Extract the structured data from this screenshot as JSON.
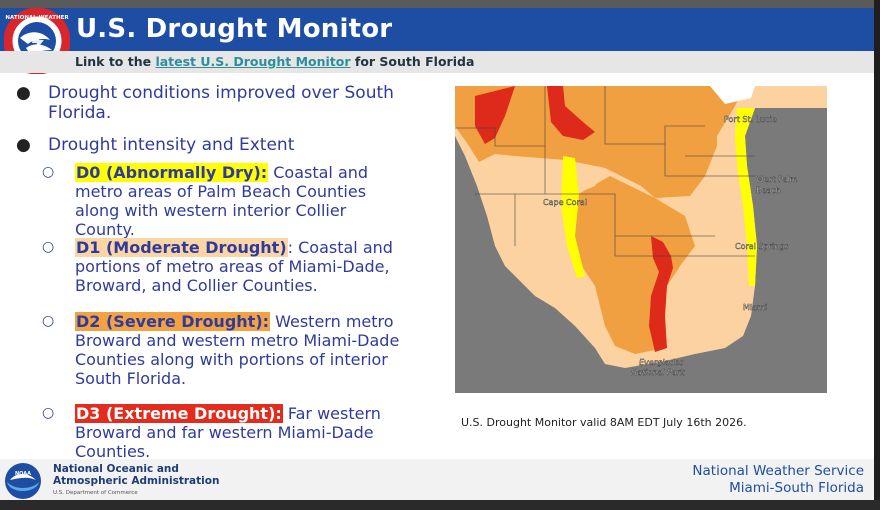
{
  "header": {
    "title": "U.S. Drought Monitor",
    "logo_text": "NATIONAL WEATHER SERVICE"
  },
  "subheader": {
    "prefix": "Link to the ",
    "link_text": "latest U.S. Drought Monitor",
    "suffix": " for South Florida"
  },
  "bullets": {
    "improved": "Drought conditions improved  over South Florida.",
    "intensity": "Drought intensity and Extent",
    "d0": {
      "label": "D0 (Abnormally Dry):",
      "text": " Coastal and metro areas of Palm Beach Counties along with western interior Collier County."
    },
    "d1": {
      "label": "D1 (Moderate Drought)",
      "text": ": Coastal and portions of metro areas of Miami-Dade, Broward, and Collier Counties."
    },
    "d2": {
      "label": "D2 (Severe Drought):",
      "text": "  Western metro Broward and western metro Miami-Dade Counties along with portions of interior South Florida."
    },
    "d3": {
      "label": "D3 (Extreme Drought):",
      "text": " Far western Broward and far western Miami-Dade Counties."
    }
  },
  "map": {
    "labels": {
      "port_st_lucie": "Port St. Lucie",
      "west_palm": "West Palm",
      "beach": "Beach",
      "cape_coral": "Cape Coral",
      "coral_springs": "Coral Springs",
      "miami": "Miami",
      "everglades": "Everglades",
      "national_park": "National Park"
    },
    "colors": {
      "d0": "#ffff00",
      "d1": "#fcd3a0",
      "d2": "#f0a040",
      "d3": "#dd2a1a",
      "water": "#7a7a7a"
    }
  },
  "caption": "U.S. Drought Monitor valid 8AM EDT July 16th 2026.",
  "footer": {
    "noaa_line1": "National Oceanic and",
    "noaa_line2": "Atmospheric Administration",
    "noaa_dept": "U.S. Department of Commerce",
    "nws_line1": "National Weather Service",
    "nws_line2": "Miami-South Florida"
  }
}
